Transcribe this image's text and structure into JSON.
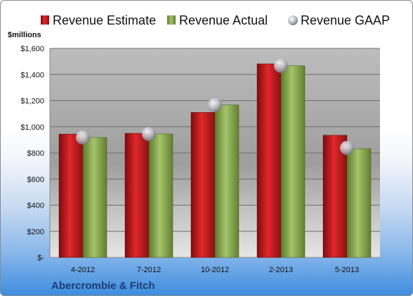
{
  "chart_data": {
    "type": "bar",
    "company": "Abercrombie & Fitch",
    "ylabel": "$millions",
    "categories": [
      "4-2012",
      "7-2012",
      "10-2012",
      "2-2013",
      "5-2013"
    ],
    "series": [
      {
        "name": "Revenue Estimate",
        "values": [
          944,
          950,
          1110,
          1482,
          935
        ],
        "color": "#c0191c"
      },
      {
        "name": "Revenue Actual",
        "values": [
          918,
          945,
          1167,
          1467,
          832
        ],
        "color": "#8caa4f"
      }
    ],
    "gaap": {
      "name": "Revenue GAAP",
      "values": [
        918,
        945,
        1167,
        1467,
        838
      ],
      "color": "#b8b8c4"
    },
    "ylim": [
      0,
      1600
    ],
    "yticks": [
      0,
      200,
      400,
      600,
      800,
      1000,
      1200,
      1400,
      1600
    ],
    "ytick_labels": [
      "$-",
      "$200",
      "$400",
      "$600",
      "$800",
      "$1,000",
      "$1,200",
      "$1,400",
      "$1,600"
    ],
    "legend_position": "top",
    "grid": true
  }
}
